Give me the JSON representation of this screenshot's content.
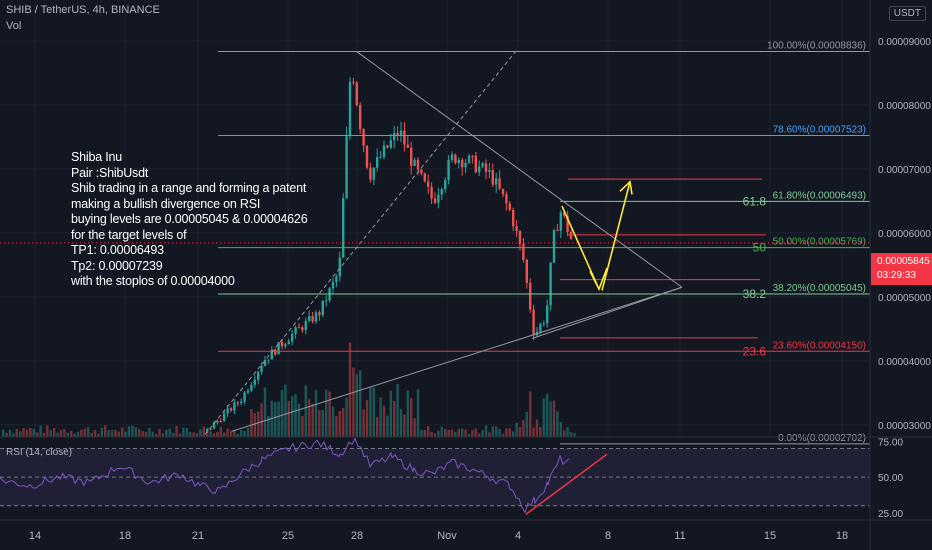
{
  "header": {
    "title": "SHIB / TetherUS, 4h, BINANCE",
    "volume_label": "Vol",
    "currency_button": "USDT"
  },
  "annotation": {
    "lines": [
      "Shiba Inu",
      "Pair :ShibUsdt",
      "Shib trading in a range and forming a patent",
      "making a bullish divergence on RSI",
      "buying levels are 0.00005045 & 0.00004626",
      "for the target levels of",
      "TP1: 0.00006493",
      "Tp2: 0.00007239",
      "with the stoplos of 0.00004000"
    ]
  },
  "price_tag": {
    "price": "0.00005845",
    "countdown": "03:29:33"
  },
  "rsi_panel": {
    "label": "RSI (14, close)"
  },
  "chart_data": [
    {
      "type": "candlestick",
      "title": "SHIB / TetherUS, 4h, BINANCE",
      "y_ticks": [
        "0.00009000",
        "0.00008000",
        "0.00007000",
        "0.00006000",
        "0.00005000",
        "0.00004000",
        "0.00003000"
      ],
      "y_tick_values": [
        9e-05,
        8e-05,
        7e-05,
        6e-05,
        5e-05,
        4e-05,
        3e-05
      ],
      "ylim": [
        2.81e-05,
        9.64e-05
      ],
      "x_ticks": [
        "14",
        "18",
        "21",
        "25",
        "28",
        "Nov",
        "4",
        "8",
        "11",
        "15",
        "18"
      ],
      "fib_levels": [
        {
          "label": "100.00%(0.00008836)",
          "value": 8.836e-05,
          "color": "#9598a1"
        },
        {
          "label": "78.60%(0.00007523)",
          "value": 7.523e-05,
          "color": "#4d9ff5"
        },
        {
          "label": "61.80%(0.00006493)",
          "short": "61.8",
          "value": 6.493e-05,
          "color": "#81c995"
        },
        {
          "label": "50.00%(0.00005769)",
          "short": "50",
          "value": 5.769e-05,
          "color": "#4caf50"
        },
        {
          "label": "38.20%(0.00005045)",
          "short": "38.2",
          "value": 5.045e-05,
          "color": "#81c995"
        },
        {
          "label": "23.60%(0.00004150)",
          "short": "23.6",
          "value": 4.15e-05,
          "color": "#f23645"
        },
        {
          "label": "0.00%(0.00002702)",
          "value": 2.702e-05,
          "color": "#9598a1"
        }
      ],
      "last_price": 5.845e-05,
      "grid": true,
      "legend": "none"
    },
    {
      "type": "line",
      "title": "RSI (14, close)",
      "y_ticks": [
        "75.00",
        "50.00",
        "25.00"
      ],
      "y_tick_values": [
        75,
        50,
        25
      ],
      "ylim": [
        20,
        78
      ],
      "levels": [
        70,
        50,
        30
      ]
    }
  ]
}
